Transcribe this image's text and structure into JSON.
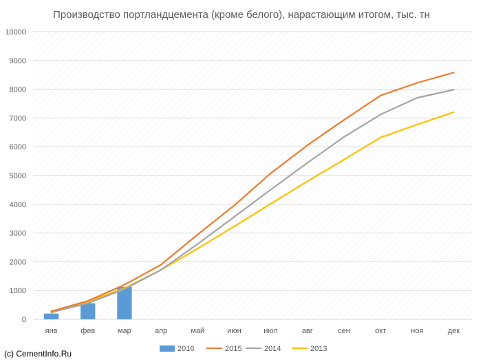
{
  "colors": {
    "s2016": "#5b9bd5",
    "s2015": "#ed7d31",
    "s2014": "#a5a5a5",
    "s2013": "#ffc000",
    "grid": "#d9d9d9",
    "text": "#595959"
  },
  "source_text": "(c) CementInfo.Ru",
  "chart_data": {
    "type": "bar+line",
    "title": "Производство портландцемента (кроме белого), нарастающим итогом, тыс. тн",
    "xlabel": "",
    "ylabel": "",
    "ylim": [
      0,
      10000
    ],
    "yticks": [
      0,
      1000,
      2000,
      3000,
      4000,
      5000,
      6000,
      7000,
      8000,
      9000,
      10000
    ],
    "categories": [
      "янв",
      "фев",
      "мар",
      "апр",
      "май",
      "июн",
      "июл",
      "авг",
      "сен",
      "окт",
      "ноя",
      "дек"
    ],
    "grid": true,
    "legend_position": "bottom",
    "series": [
      {
        "name": "2016",
        "kind": "bar",
        "color": "#5b9bd5",
        "values": [
          200,
          560,
          1130,
          null,
          null,
          null,
          null,
          null,
          null,
          null,
          null,
          null
        ]
      },
      {
        "name": "2015",
        "kind": "line",
        "color": "#ed7d31",
        "values": [
          280,
          640,
          1200,
          1900,
          2950,
          3960,
          5080,
          6050,
          6930,
          7780,
          8220,
          8580
        ]
      },
      {
        "name": "2014",
        "kind": "line",
        "color": "#a5a5a5",
        "values": [
          250,
          560,
          1050,
          1720,
          2620,
          3560,
          4510,
          5440,
          6340,
          7120,
          7700,
          7980
        ]
      },
      {
        "name": "2013",
        "kind": "line",
        "color": "#ffc000",
        "values": [
          230,
          620,
          1080,
          1720,
          2460,
          3230,
          4020,
          4800,
          5550,
          6320,
          6770,
          7200
        ]
      }
    ]
  }
}
